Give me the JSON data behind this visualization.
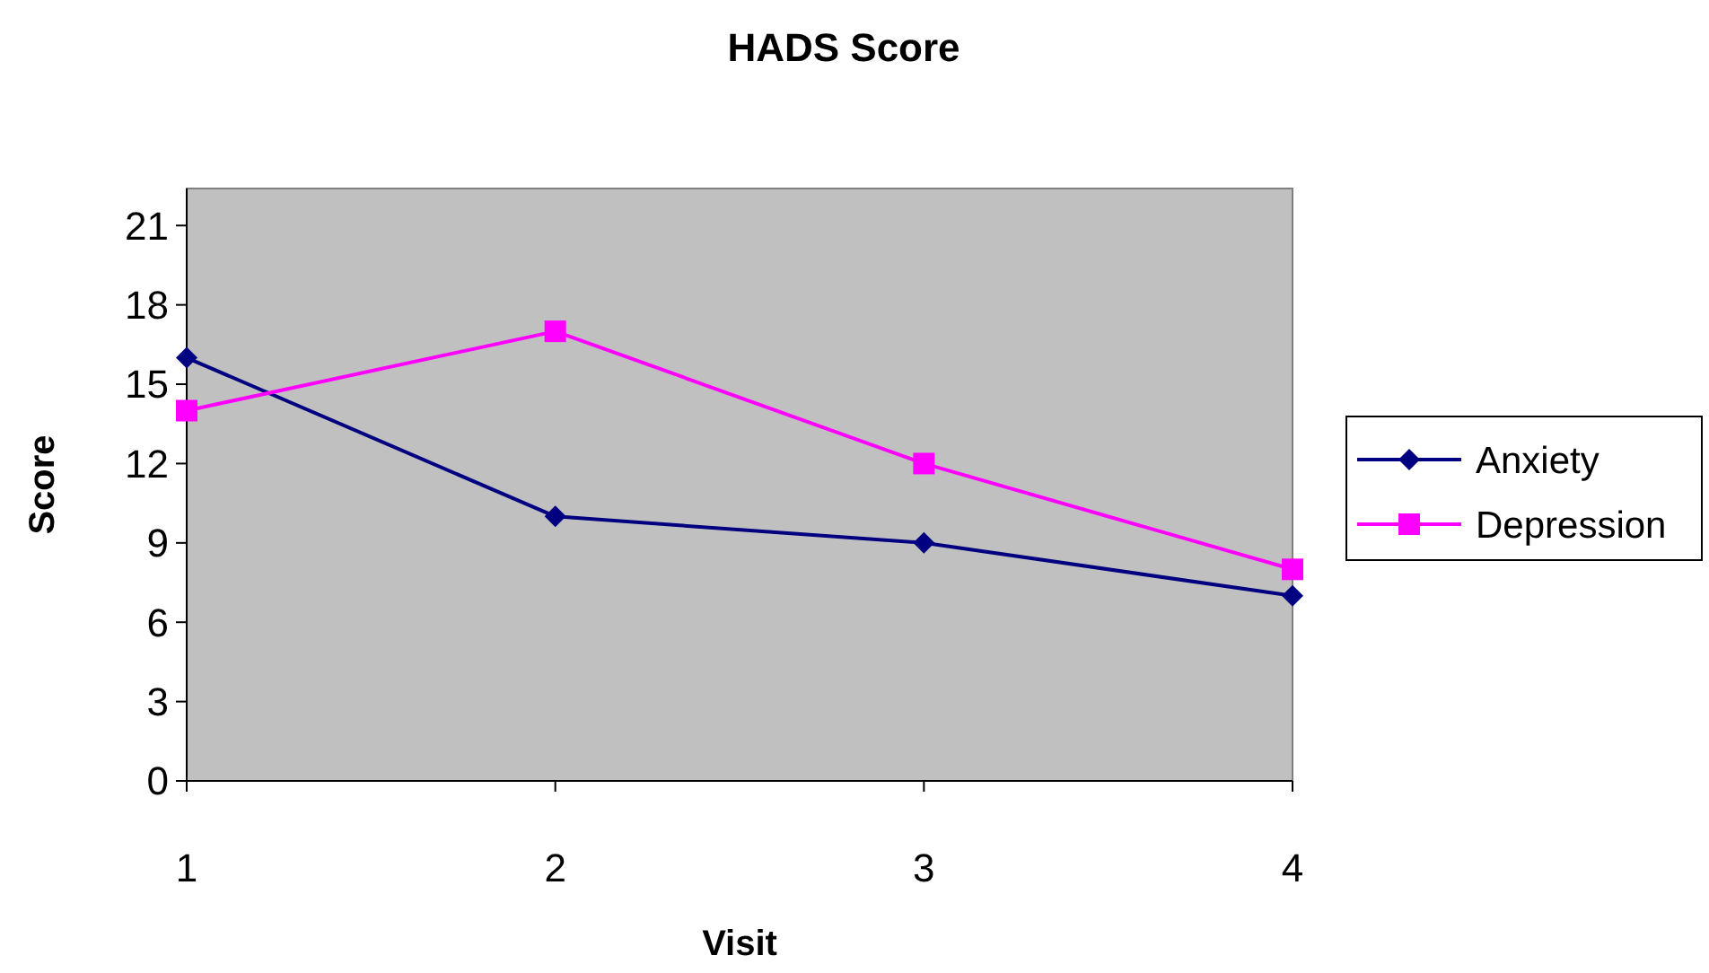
{
  "chart_data": {
    "type": "line",
    "title": "HADS Score",
    "xlabel": "Visit",
    "ylabel": "Score",
    "x": [
      1,
      2,
      3,
      4
    ],
    "xlim": [
      1,
      4
    ],
    "xticks": [
      1,
      2,
      3,
      4
    ],
    "ylim": [
      0,
      22.4
    ],
    "yticks": [
      0,
      3,
      6,
      9,
      12,
      15,
      18,
      21
    ],
    "grid": false,
    "legend": "right",
    "series": [
      {
        "name": "Anxiety",
        "color": "#000080",
        "marker": "diamond",
        "values": [
          16,
          10,
          9,
          7
        ]
      },
      {
        "name": "Depression",
        "color": "#ff00ff",
        "marker": "square",
        "values": [
          14,
          17,
          12,
          8
        ]
      }
    ]
  }
}
